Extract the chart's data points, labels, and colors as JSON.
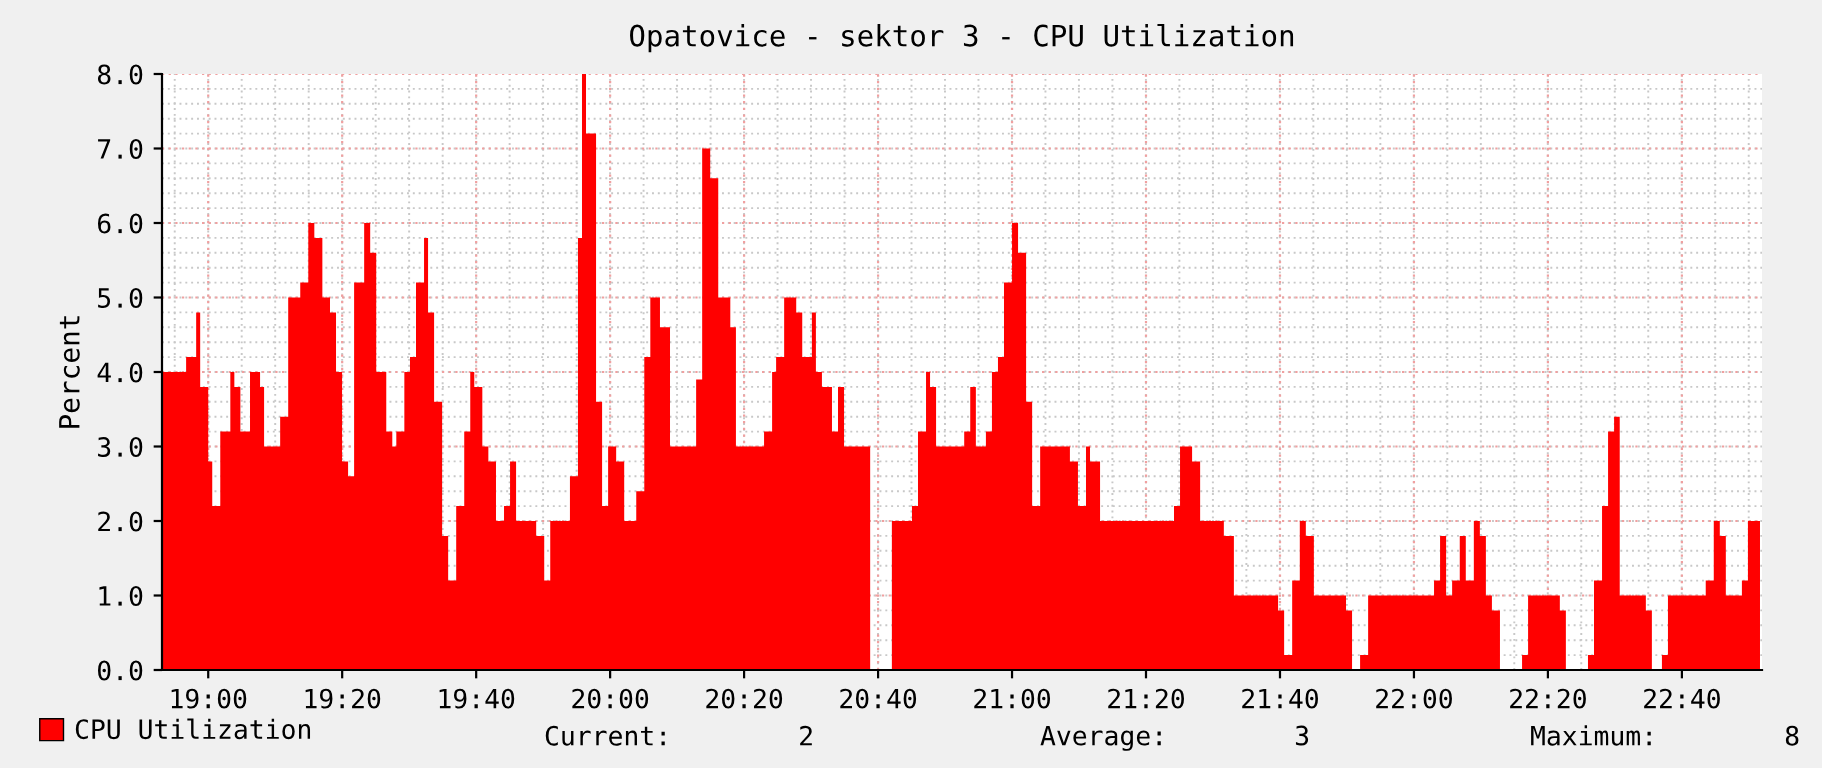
{
  "chart_data": {
    "type": "area",
    "title": "Opatovice - sektor 3 - CPU Utilization",
    "ylabel": "Percent",
    "series": [
      {
        "name": "CPU Utilization",
        "color": "#ff0000",
        "x": [
          18.885,
          18.945,
          18.945,
          18.97,
          18.97,
          18.98,
          18.98,
          19.0,
          19.0,
          19.01,
          19.01,
          19.03,
          19.03,
          19.055,
          19.055,
          19.065,
          19.065,
          19.08,
          19.08,
          19.104,
          19.104,
          19.129,
          19.129,
          19.139,
          19.139,
          19.179,
          19.179,
          19.199,
          19.199,
          19.229,
          19.229,
          19.249,
          19.249,
          19.264,
          19.264,
          19.284,
          19.284,
          19.303,
          19.303,
          19.318,
          19.318,
          19.333,
          19.333,
          19.348,
          19.348,
          19.363,
          19.363,
          19.388,
          19.388,
          19.403,
          19.403,
          19.418,
          19.418,
          19.443,
          19.443,
          19.458,
          19.458,
          19.468,
          19.468,
          19.488,
          19.488,
          19.502,
          19.502,
          19.517,
          19.517,
          19.537,
          19.537,
          19.547,
          19.547,
          19.562,
          19.562,
          19.582,
          19.582,
          19.597,
          19.597,
          19.617,
          19.617,
          19.637,
          19.637,
          19.652,
          19.652,
          19.662,
          19.662,
          19.682,
          19.682,
          19.697,
          19.697,
          19.716,
          19.716,
          19.736,
          19.736,
          19.751,
          19.751,
          19.766,
          19.766,
          19.816,
          19.816,
          19.836,
          19.836,
          19.851,
          19.851,
          19.9,
          19.9,
          19.92,
          19.92,
          19.93,
          19.93,
          19.94,
          19.94,
          19.965,
          19.965,
          19.98,
          19.98,
          19.995,
          19.995,
          20.015,
          20.015,
          20.035,
          20.035,
          20.065,
          20.065,
          20.085,
          20.085,
          20.1,
          20.1,
          20.124,
          20.124,
          20.149,
          20.149,
          20.214,
          20.214,
          20.229,
          20.229,
          20.249,
          20.249,
          20.269,
          20.269,
          20.299,
          20.299,
          20.313,
          20.313,
          20.383,
          20.383,
          20.403,
          20.403,
          20.413,
          20.413,
          20.433,
          20.433,
          20.463,
          20.463,
          20.478,
          20.478,
          20.502,
          20.502,
          20.512,
          20.512,
          20.527,
          20.527,
          20.552,
          20.552,
          20.567,
          20.567,
          20.582,
          20.582,
          20.647
        ],
        "values": [
          4.0,
          4.0,
          4.2,
          4.2,
          4.8,
          4.8,
          3.8,
          3.8,
          2.8,
          2.8,
          2.2,
          2.2,
          3.2,
          3.2,
          4.0,
          4.0,
          3.8,
          3.8,
          3.2,
          3.2,
          4.0,
          4.0,
          3.8,
          3.8,
          3.0,
          3.0,
          3.4,
          3.4,
          5.0,
          5.0,
          5.2,
          5.2,
          6.0,
          6.0,
          5.8,
          5.8,
          5.0,
          5.0,
          4.8,
          4.8,
          4.0,
          4.0,
          2.8,
          2.8,
          2.6,
          2.6,
          5.2,
          5.2,
          6.0,
          6.0,
          5.6,
          5.6,
          4.0,
          4.0,
          3.2,
          3.2,
          3.0,
          3.0,
          3.2,
          3.2,
          4.0,
          4.0,
          4.2,
          4.2,
          5.2,
          5.2,
          5.8,
          5.8,
          4.8,
          4.8,
          3.6,
          3.6,
          1.8,
          1.8,
          1.2,
          1.2,
          2.2,
          2.2,
          3.2,
          3.2,
          4.0,
          4.0,
          3.8,
          3.8,
          3.0,
          3.0,
          2.8,
          2.8,
          2.0,
          2.0,
          2.2,
          2.2,
          2.8,
          2.8,
          2.0,
          2.0,
          1.8,
          1.8,
          1.2,
          1.2,
          2.0,
          2.0,
          2.6,
          2.6,
          5.8,
          5.8,
          8.0,
          8.0,
          7.2,
          7.2,
          3.6,
          3.6,
          2.2,
          2.2,
          3.0,
          3.0,
          2.8,
          2.8,
          2.0,
          2.0,
          2.4,
          2.4,
          4.2,
          4.2,
          5.0,
          5.0,
          4.6,
          4.6,
          3.0,
          3.0,
          3.9,
          3.9,
          7.0,
          7.0,
          6.6,
          6.6,
          5.0,
          5.0,
          4.6,
          4.6,
          3.0,
          3.0,
          3.2,
          3.2,
          4.0,
          4.0,
          4.2,
          4.2,
          5.0,
          5.0,
          4.8,
          4.8,
          4.2,
          4.2,
          4.8,
          4.8,
          4.0,
          4.0,
          3.8,
          3.8,
          3.2,
          3.2,
          3.8,
          3.8,
          3.0,
          3.0
        ]
      },
      {
        "color": "#ff0000",
        "x": [
          20.701,
          20.751,
          20.751,
          20.766,
          20.766,
          20.786,
          20.786,
          20.796,
          20.796,
          20.811,
          20.811,
          20.881,
          20.881,
          20.896,
          20.896,
          20.91,
          20.91,
          20.935,
          20.935,
          20.95,
          20.95,
          20.965,
          20.965,
          20.98,
          20.98,
          21.0,
          21.0,
          21.015,
          21.015,
          21.035,
          21.035,
          21.05,
          21.05,
          21.07,
          21.07,
          21.144,
          21.144,
          21.164,
          21.164,
          21.184,
          21.184,
          21.194,
          21.194,
          21.219,
          21.219,
          21.403,
          21.403,
          21.418,
          21.418,
          21.448,
          21.448,
          21.468,
          21.468,
          21.527,
          21.527,
          21.552,
          21.552,
          21.662,
          21.662,
          21.677,
          21.677,
          21.697,
          21.697,
          21.716,
          21.716,
          21.731,
          21.731,
          21.751,
          21.751,
          21.831,
          21.831,
          21.846
        ],
        "values": [
          2.0,
          2.0,
          2.2,
          2.2,
          3.2,
          3.2,
          4.0,
          4.0,
          3.8,
          3.8,
          3.0,
          3.0,
          3.2,
          3.2,
          3.8,
          3.8,
          3.0,
          3.0,
          3.2,
          3.2,
          4.0,
          4.0,
          4.2,
          4.2,
          5.2,
          5.2,
          6.0,
          6.0,
          5.6,
          5.6,
          3.6,
          3.6,
          2.2,
          2.2,
          3.0,
          3.0,
          2.8,
          2.8,
          2.2,
          2.2,
          3.0,
          3.0,
          2.8,
          2.8,
          2.0,
          2.0,
          2.2,
          2.2,
          3.0,
          3.0,
          2.8,
          2.8,
          2.0,
          2.0,
          1.8,
          1.8,
          1.0,
          1.0,
          0.8,
          0.8,
          0.2,
          0.2,
          1.2,
          1.2,
          2.0,
          2.0,
          1.8,
          1.8,
          1.0,
          1.0,
          0.8,
          0.8
        ]
      },
      {
        "color": "#ff0000",
        "x": [
          21.866,
          21.886,
          21.886,
          22.05,
          22.05,
          22.065,
          22.065,
          22.08,
          22.08,
          22.095,
          22.095,
          22.114,
          22.114,
          22.129,
          22.129,
          22.149,
          22.149,
          22.164,
          22.164,
          22.179,
          22.179,
          22.194,
          22.194,
          22.214
        ],
        "values": [
          0.2,
          0.2,
          1.0,
          1.0,
          1.2,
          1.2,
          1.8,
          1.8,
          1.0,
          1.0,
          1.2,
          1.2,
          1.8,
          1.8,
          1.2,
          1.2,
          2.0,
          2.0,
          1.8,
          1.8,
          1.0,
          1.0,
          0.8,
          0.8
        ]
      },
      {
        "color": "#ff0000",
        "x": [
          22.269,
          22.284,
          22.284,
          22.363,
          22.363,
          22.378
        ],
        "values": [
          0.2,
          0.2,
          1.0,
          1.0,
          0.8,
          0.8
        ]
      },
      {
        "color": "#ff0000",
        "x": [
          22.433,
          22.448,
          22.448,
          22.468,
          22.468,
          22.483,
          22.483,
          22.498,
          22.498,
          22.512,
          22.512,
          22.577,
          22.577,
          22.592
        ],
        "values": [
          0.2,
          0.2,
          1.2,
          1.2,
          2.2,
          2.2,
          3.2,
          3.2,
          3.4,
          3.4,
          1.0,
          1.0,
          0.8,
          0.8
        ]
      },
      {
        "color": "#ff0000",
        "x": [
          22.617,
          22.632,
          22.632,
          22.726,
          22.726,
          22.746,
          22.746,
          22.761,
          22.761,
          22.776,
          22.776,
          22.816,
          22.816,
          22.831,
          22.831,
          22.861
        ],
        "values": [
          0.2,
          0.2,
          1.0,
          1.0,
          1.2,
          1.2,
          2.0,
          2.0,
          1.8,
          1.8,
          1.0,
          1.0,
          1.2,
          1.2,
          2.0,
          2.0
        ]
      }
    ],
    "xlim": [
      18.885,
      22.866
    ],
    "ylim": [
      0,
      8
    ],
    "xticks": [
      {
        "value": 19,
        "label": "19:00"
      },
      {
        "value": 19.3333,
        "label": "19:20"
      },
      {
        "value": 19.6667,
        "label": "19:40"
      },
      {
        "value": 20,
        "label": "20:00"
      },
      {
        "value": 20.3333,
        "label": "20:20"
      },
      {
        "value": 20.6667,
        "label": "20:40"
      },
      {
        "value": 21,
        "label": "21:00"
      },
      {
        "value": 21.3333,
        "label": "21:20"
      },
      {
        "value": 21.6667,
        "label": "21:40"
      },
      {
        "value": 22,
        "label": "22:00"
      },
      {
        "value": 22.3333,
        "label": "22:20"
      },
      {
        "value": 22.6667,
        "label": "22:40"
      }
    ],
    "yticks": [
      {
        "value": 0,
        "label": "0.0"
      },
      {
        "value": 1,
        "label": "1.0"
      },
      {
        "value": 2,
        "label": "2.0"
      },
      {
        "value": 3,
        "label": "3.0"
      },
      {
        "value": 4,
        "label": "4.0"
      },
      {
        "value": 5,
        "label": "5.0"
      },
      {
        "value": 6,
        "label": "6.0"
      },
      {
        "value": 7,
        "label": "7.0"
      },
      {
        "value": 8,
        "label": "8.0"
      }
    ],
    "grid": true,
    "legend": "bottom left",
    "annotations": [
      "Current:        2",
      "Average:        3",
      "Maximum:        8"
    ]
  }
}
